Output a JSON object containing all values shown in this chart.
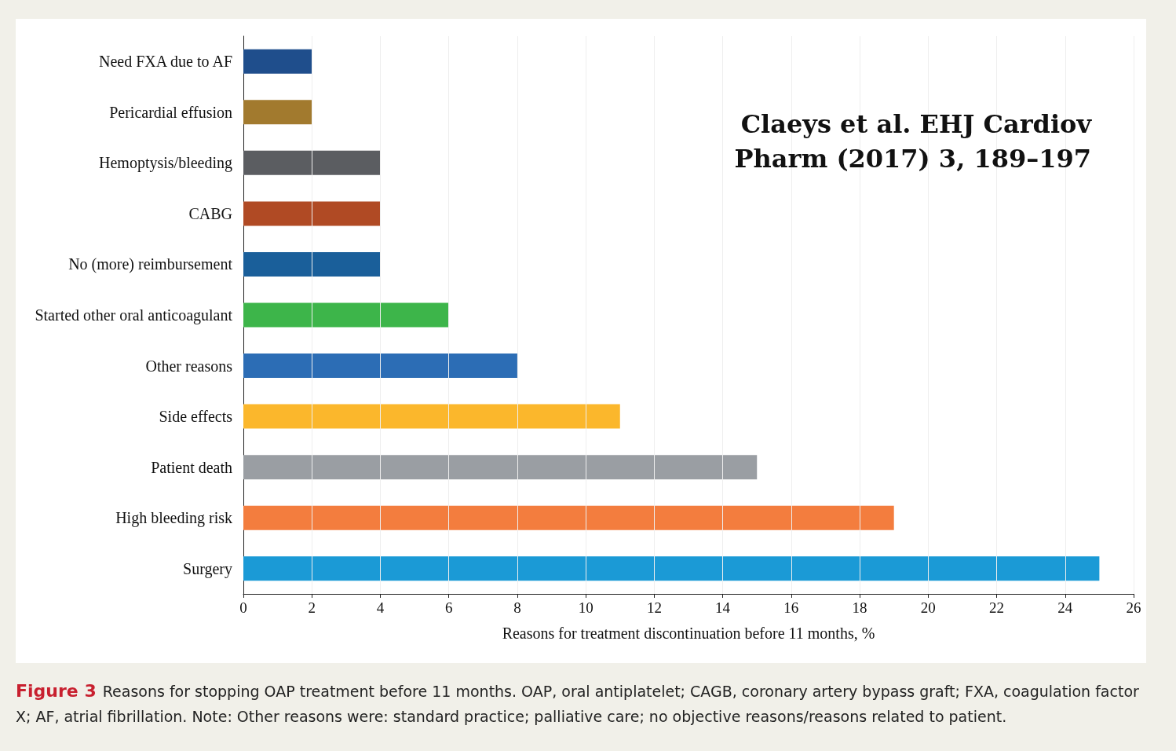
{
  "chart_data": {
    "type": "bar",
    "orientation": "horizontal",
    "xlabel": "Reasons for treatment discontinuation before 11 months, %",
    "categories": [
      "Need FXA due to AF",
      "Pericardial effusion",
      "Hemoptysis/bleeding",
      "CABG",
      "No (more) reimbursement",
      "Started other oral anticoagulant",
      "Other reasons",
      "Side effects",
      "Patient death",
      "High bleeding risk",
      "Surgery"
    ],
    "values": [
      2,
      2,
      4,
      4,
      4,
      6,
      8,
      11,
      15,
      19,
      25
    ],
    "colors": [
      "#1f4e8c",
      "#a27a2e",
      "#5b5d61",
      "#b04a24",
      "#1a5f9a",
      "#3db54a",
      "#2c6db5",
      "#fbb72c",
      "#9a9ea3",
      "#f37d3e",
      "#1b9ad6"
    ],
    "xlim": [
      0,
      26
    ],
    "xticks": [
      0,
      2,
      4,
      6,
      8,
      10,
      12,
      14,
      16,
      18,
      20,
      22,
      24,
      26
    ],
    "grid": "x",
    "annotations": [
      "Claeys et al. EHJ Cardiov Pharm (2017) 3, 189–197",
      "Figure 3",
      "Reasons for stopping OAP treatment before 11 months. OAP, oral antiplatelet; CAGB, coronary artery bypass graft; FXA, coagulation factor X; AF, atrial fibrillation. Note: Other reasons were: standard practice; palliative care; no objective reasons/reasons related to patient."
    ]
  }
}
